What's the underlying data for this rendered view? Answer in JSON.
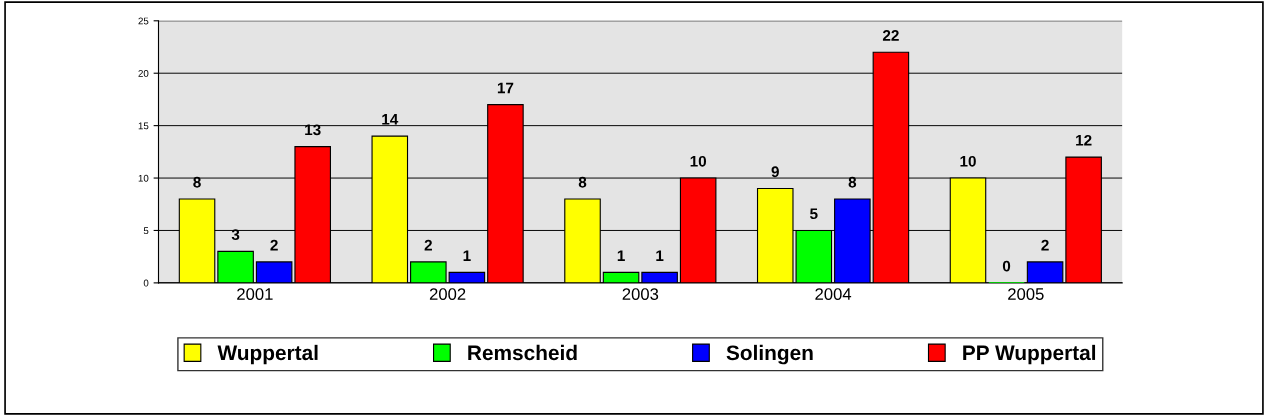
{
  "chart_data": {
    "type": "bar",
    "categories": [
      "2001",
      "2002",
      "2003",
      "2004",
      "2005"
    ],
    "series": [
      {
        "name": "Wuppertal",
        "color": "#ffff00",
        "values": [
          8,
          14,
          8,
          9,
          10
        ]
      },
      {
        "name": "Remscheid",
        "color": "#00ff00",
        "values": [
          3,
          2,
          1,
          5,
          0
        ]
      },
      {
        "name": "Solingen",
        "color": "#0000ff",
        "values": [
          2,
          1,
          1,
          8,
          2
        ]
      },
      {
        "name": "PP Wuppertal",
        "color": "#ff0000",
        "values": [
          13,
          17,
          10,
          22,
          12
        ]
      }
    ],
    "ylim": [
      0,
      25
    ],
    "yticks": [
      0,
      5,
      10,
      15,
      20,
      25
    ],
    "grid": "y",
    "legend": "bottom",
    "data_labels": true
  }
}
